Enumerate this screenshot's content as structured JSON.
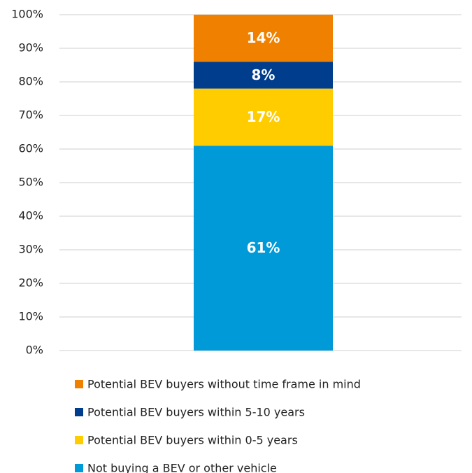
{
  "chart_data": {
    "type": "stacked_bar",
    "categories": [
      null
    ],
    "series": [
      {
        "name": "Not buying a BEV or other vehicle",
        "color": "#009ad8",
        "values": [
          61
        ],
        "value_labels": [
          "61%"
        ]
      },
      {
        "name": "Potential BEV buyers within 0-5 years",
        "color": "#ffcc00",
        "values": [
          17
        ],
        "value_labels": [
          "17%"
        ]
      },
      {
        "name": "Potential BEV buyers within 5-10 years",
        "color": "#003d8c",
        "values": [
          8
        ],
        "value_labels": [
          "8%"
        ]
      },
      {
        "name": "Potential BEV buyers without time frame in mind",
        "color": "#f08000",
        "values": [
          14
        ],
        "value_labels": [
          "14%"
        ]
      }
    ],
    "ylim": [
      0,
      100
    ],
    "yticks": [
      {
        "value": 0,
        "label": "0%"
      },
      {
        "value": 10,
        "label": "10%"
      },
      {
        "value": 20,
        "label": "20%"
      },
      {
        "value": 30,
        "label": "30%"
      },
      {
        "value": 40,
        "label": "40%"
      },
      {
        "value": 50,
        "label": "50%"
      },
      {
        "value": 60,
        "label": "60%"
      },
      {
        "value": 70,
        "label": "70%"
      },
      {
        "value": 80,
        "label": "80%"
      },
      {
        "value": 90,
        "label": "90%"
      },
      {
        "value": 100,
        "label": "100%"
      }
    ],
    "grid": true
  }
}
